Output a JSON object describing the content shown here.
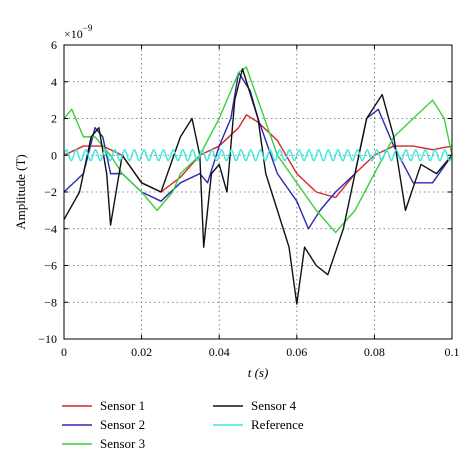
{
  "chart_data": {
    "type": "line",
    "title": "",
    "xlabel": "t (s)",
    "ylabel": "Amplitude (T)",
    "y_multiplier": "×10",
    "y_multiplier_exp": "−9",
    "xlim": [
      0,
      0.1
    ],
    "ylim": [
      -10,
      6
    ],
    "x_ticks": [
      0,
      0.02,
      0.04,
      0.06,
      0.08,
      0.1
    ],
    "x_tick_labels": [
      "0",
      "0.02",
      "0.04",
      "0.06",
      "0.08",
      "0.1"
    ],
    "y_ticks": [
      6,
      4,
      2,
      0,
      -2,
      -4,
      -6,
      -8,
      -10
    ],
    "y_tick_labels": [
      "6",
      "4",
      "2",
      "0",
      "−2",
      "−4",
      "−6",
      "−8",
      "−10"
    ],
    "grid": true,
    "legend_position": "below",
    "series": [
      {
        "name": "Sensor 1",
        "color": "#d62728",
        "points": [
          [
            0,
            0
          ],
          [
            0.005,
            0.5
          ],
          [
            0.01,
            0.5
          ],
          [
            0.015,
            0
          ],
          [
            0.02,
            -1.5
          ],
          [
            0.025,
            -2
          ],
          [
            0.03,
            -1.2
          ],
          [
            0.035,
            0
          ],
          [
            0.04,
            0.5
          ],
          [
            0.045,
            1.5
          ],
          [
            0.047,
            2.2
          ],
          [
            0.05,
            1.8
          ],
          [
            0.055,
            0.8
          ],
          [
            0.06,
            -1
          ],
          [
            0.065,
            -2
          ],
          [
            0.07,
            -2.3
          ],
          [
            0.075,
            -1
          ],
          [
            0.08,
            0
          ],
          [
            0.085,
            0.5
          ],
          [
            0.09,
            0.5
          ],
          [
            0.095,
            0.3
          ],
          [
            0.1,
            0.5
          ]
        ]
      },
      {
        "name": "Sensor 2",
        "color": "#2a2ab0",
        "points": [
          [
            0,
            -2
          ],
          [
            0.005,
            -1
          ],
          [
            0.008,
            1.5
          ],
          [
            0.01,
            1
          ],
          [
            0.012,
            -1
          ],
          [
            0.015,
            -1
          ],
          [
            0.02,
            -2
          ],
          [
            0.025,
            -2.5
          ],
          [
            0.03,
            -1.5
          ],
          [
            0.035,
            -1
          ],
          [
            0.037,
            -1.5
          ],
          [
            0.04,
            0.5
          ],
          [
            0.043,
            2
          ],
          [
            0.045,
            4.5
          ],
          [
            0.048,
            3.5
          ],
          [
            0.05,
            2
          ],
          [
            0.055,
            -1
          ],
          [
            0.06,
            -2.5
          ],
          [
            0.063,
            -4
          ],
          [
            0.066,
            -3
          ],
          [
            0.07,
            -2
          ],
          [
            0.075,
            -1
          ],
          [
            0.078,
            2
          ],
          [
            0.081,
            2.5
          ],
          [
            0.085,
            0.5
          ],
          [
            0.09,
            -1.5
          ],
          [
            0.095,
            -1.5
          ],
          [
            0.1,
            0
          ]
        ]
      },
      {
        "name": "Sensor 3",
        "color": "#3cd03c",
        "points": [
          [
            0,
            2
          ],
          [
            0.002,
            2.5
          ],
          [
            0.005,
            1
          ],
          [
            0.008,
            1
          ],
          [
            0.012,
            0
          ],
          [
            0.015,
            -1
          ],
          [
            0.02,
            -2
          ],
          [
            0.024,
            -3
          ],
          [
            0.028,
            -2
          ],
          [
            0.03,
            -1
          ],
          [
            0.035,
            0
          ],
          [
            0.04,
            2
          ],
          [
            0.045,
            4.5
          ],
          [
            0.047,
            4.8
          ],
          [
            0.05,
            3
          ],
          [
            0.055,
            0
          ],
          [
            0.06,
            -1.5
          ],
          [
            0.065,
            -3
          ],
          [
            0.07,
            -4.2
          ],
          [
            0.075,
            -3
          ],
          [
            0.08,
            -1
          ],
          [
            0.085,
            1
          ],
          [
            0.09,
            2
          ],
          [
            0.095,
            3
          ],
          [
            0.098,
            2
          ],
          [
            0.1,
            0
          ]
        ]
      },
      {
        "name": "Sensor 4",
        "color": "#111111",
        "points": [
          [
            0,
            -3.5
          ],
          [
            0.004,
            -2
          ],
          [
            0.007,
            1
          ],
          [
            0.009,
            1.5
          ],
          [
            0.011,
            -1
          ],
          [
            0.012,
            -3.8
          ],
          [
            0.015,
            0
          ],
          [
            0.02,
            -1.5
          ],
          [
            0.025,
            -2
          ],
          [
            0.03,
            1
          ],
          [
            0.033,
            2
          ],
          [
            0.035,
            0
          ],
          [
            0.036,
            -5
          ],
          [
            0.038,
            -1
          ],
          [
            0.04,
            -0.5
          ],
          [
            0.042,
            -2
          ],
          [
            0.044,
            3
          ],
          [
            0.046,
            4.7
          ],
          [
            0.05,
            2
          ],
          [
            0.052,
            -1
          ],
          [
            0.055,
            -3
          ],
          [
            0.058,
            -5
          ],
          [
            0.06,
            -8.1
          ],
          [
            0.062,
            -5
          ],
          [
            0.065,
            -6
          ],
          [
            0.068,
            -6.5
          ],
          [
            0.072,
            -4
          ],
          [
            0.075,
            -1
          ],
          [
            0.078,
            2
          ],
          [
            0.082,
            3.3
          ],
          [
            0.085,
            1
          ],
          [
            0.088,
            -3
          ],
          [
            0.092,
            -0.5
          ],
          [
            0.096,
            -1
          ],
          [
            0.1,
            0
          ]
        ]
      },
      {
        "name": "Reference",
        "color": "#3ee8e0",
        "periodic": true,
        "amplitude": 0.3,
        "period_s": 0.0025
      }
    ]
  },
  "legend": [
    {
      "label": "Sensor 1",
      "color": "#d62728"
    },
    {
      "label": "Sensor 2",
      "color": "#2a2ab0"
    },
    {
      "label": "Sensor 3",
      "color": "#3cd03c"
    },
    {
      "label": "Sensor 4",
      "color": "#111111"
    },
    {
      "label": "Reference",
      "color": "#3ee8e0"
    }
  ]
}
